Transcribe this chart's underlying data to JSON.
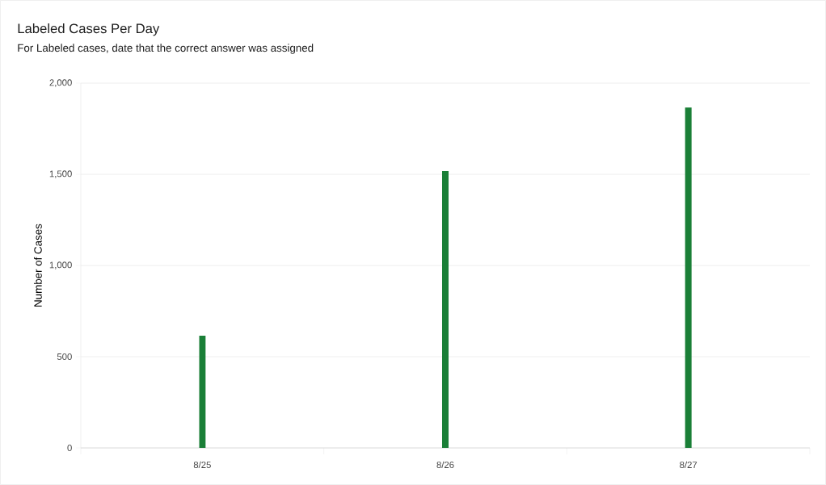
{
  "chart_data": {
    "type": "bar",
    "title": "Labeled Cases Per Day",
    "subtitle": "For Labeled cases, date that the correct answer was assigned",
    "ylabel": "Number of Cases",
    "categories": [
      "8/25",
      "8/26",
      "8/27"
    ],
    "values": [
      615,
      1518,
      1866
    ],
    "color": "#1a7f37",
    "ylim": [
      0,
      2000
    ],
    "yticks": [
      0,
      500,
      {
        "value": 1000,
        "label": "1,000"
      },
      {
        "value": 1500,
        "label": "1,500"
      },
      {
        "value": 2000,
        "label": "2,000"
      }
    ],
    "grid": "y"
  }
}
